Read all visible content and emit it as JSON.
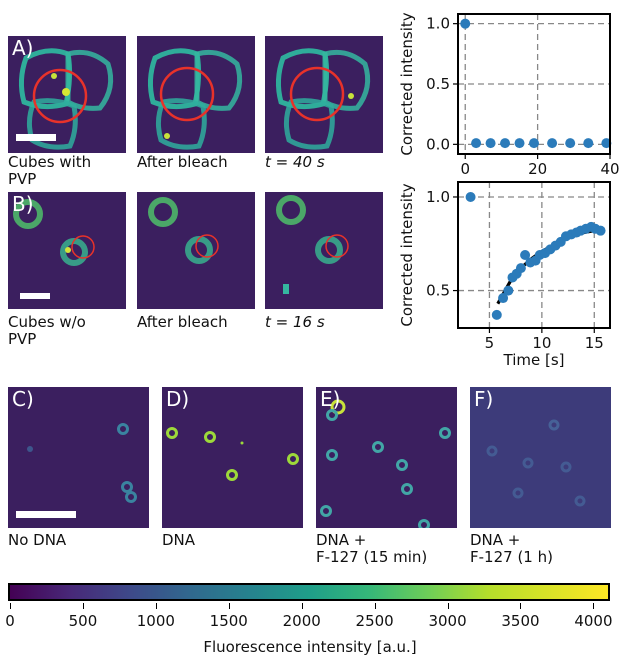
{
  "panels": {
    "A": {
      "label": "A)",
      "captions": [
        "Cubes with\nPVP",
        "After bleach",
        "t = 40 s"
      ]
    },
    "B": {
      "label": "B)",
      "captions": [
        "Cubes w/o\nPVP",
        "After bleach",
        "t = 16 s"
      ]
    },
    "C": {
      "label": "C)",
      "caption": "No DNA"
    },
    "D": {
      "label": "D)",
      "caption": "DNA"
    },
    "E": {
      "label": "E)",
      "caption": "DNA +\nF-127 (15 min)"
    },
    "F": {
      "label": "F)",
      "caption": "DNA +\nF-127 (1 h)"
    }
  },
  "colors": {
    "bleach_circle": "#e8322a",
    "data_point": "#2b7bba",
    "fit": "#000000",
    "panel_bg": "#3b1f5f"
  },
  "colorbar": {
    "title": "Fluorescence intensity [a.u.]",
    "ticks": [
      "0",
      "500",
      "1000",
      "1500",
      "2000",
      "2500",
      "3000",
      "3500",
      "4000"
    ],
    "range": [
      0,
      4100
    ]
  },
  "chart_data": [
    {
      "type": "scatter",
      "ylabel": "Corrected intensity",
      "xlabel": "",
      "xlim": [
        -2,
        40
      ],
      "ylim": [
        -0.08,
        1.08
      ],
      "xticks": [
        0,
        20,
        40
      ],
      "yticks": [
        0.0,
        0.5,
        1.0
      ],
      "ytick_labels": [
        "0.0",
        "0.5",
        "1.0"
      ],
      "grid": true,
      "x": [
        0,
        3,
        7,
        11,
        15,
        19,
        24,
        29,
        34,
        39
      ],
      "y": [
        1.0,
        0.01,
        0.01,
        0.01,
        0.01,
        0.01,
        0.01,
        0.01,
        0.01,
        0.01
      ]
    },
    {
      "type": "scatter",
      "ylabel": "Corrected intensity",
      "xlabel": "Time [s]",
      "xlim": [
        2,
        16.5
      ],
      "ylim": [
        0.3,
        1.08
      ],
      "xticks": [
        5,
        10,
        15
      ],
      "yticks": [
        0.5,
        1.0
      ],
      "ytick_labels": [
        "0.5",
        "1.0"
      ],
      "grid": true,
      "x": [
        3.2,
        5.7,
        6.3,
        6.8,
        7.2,
        7.6,
        8.0,
        8.4,
        8.9,
        9.4,
        9.8,
        10.3,
        10.8,
        11.3,
        11.8,
        12.3,
        12.8,
        13.3,
        13.7,
        14.2,
        14.7,
        15.1,
        15.6
      ],
      "y": [
        1.0,
        0.37,
        0.46,
        0.5,
        0.57,
        0.59,
        0.62,
        0.69,
        0.65,
        0.66,
        0.69,
        0.7,
        0.72,
        0.74,
        0.76,
        0.79,
        0.8,
        0.81,
        0.82,
        0.83,
        0.84,
        0.83,
        0.82
      ],
      "fit": {
        "x": [
          5.8,
          7,
          8,
          9,
          10,
          11,
          12,
          13,
          14,
          15,
          15.8
        ],
        "y": [
          0.43,
          0.55,
          0.62,
          0.67,
          0.71,
          0.74,
          0.77,
          0.79,
          0.81,
          0.82,
          0.83
        ]
      }
    }
  ]
}
